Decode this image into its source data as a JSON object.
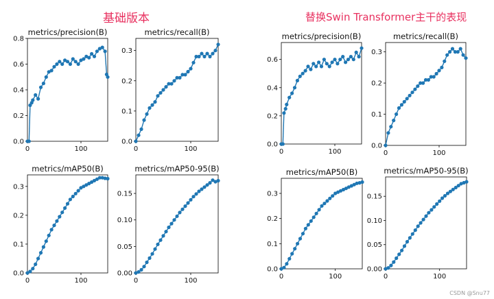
{
  "titles": {
    "left": "基础版本",
    "right": "替换Swin Transformer主干的表现"
  },
  "watermark": "CSDN @Snu77",
  "series_color": "#1f77b4",
  "smooth_color": "#ff7f0e",
  "chart_data": [
    {
      "type": "line",
      "group": "left",
      "title": "metrics/precision(B)",
      "xlim": [
        0,
        150
      ],
      "ylim": [
        0,
        0.8
      ],
      "xticks": [
        0,
        100
      ],
      "yticks": [
        0.0,
        0.2,
        0.4,
        0.6,
        0.8
      ],
      "x": [
        0,
        3,
        5,
        8,
        10,
        15,
        20,
        25,
        30,
        35,
        40,
        45,
        50,
        55,
        60,
        65,
        70,
        75,
        80,
        85,
        90,
        95,
        100,
        105,
        110,
        115,
        120,
        125,
        130,
        135,
        140,
        145,
        148,
        150
      ],
      "y": [
        0.0,
        0.0,
        0.28,
        0.3,
        0.32,
        0.36,
        0.33,
        0.42,
        0.45,
        0.5,
        0.54,
        0.55,
        0.58,
        0.6,
        0.62,
        0.6,
        0.63,
        0.62,
        0.6,
        0.64,
        0.62,
        0.6,
        0.63,
        0.64,
        0.66,
        0.65,
        0.68,
        0.66,
        0.7,
        0.72,
        0.73,
        0.7,
        0.52,
        0.5
      ]
    },
    {
      "type": "line",
      "group": "left",
      "title": "metrics/recall(B)",
      "xlim": [
        0,
        150
      ],
      "ylim": [
        0,
        0.34
      ],
      "xticks": [
        0,
        100
      ],
      "yticks": [
        0.0,
        0.1,
        0.2,
        0.3
      ],
      "x": [
        0,
        5,
        10,
        15,
        20,
        25,
        30,
        35,
        40,
        45,
        50,
        55,
        60,
        65,
        70,
        75,
        80,
        85,
        90,
        95,
        100,
        105,
        110,
        115,
        120,
        125,
        130,
        135,
        140,
        145,
        150
      ],
      "y": [
        0.0,
        0.02,
        0.04,
        0.07,
        0.09,
        0.11,
        0.12,
        0.13,
        0.15,
        0.16,
        0.17,
        0.18,
        0.19,
        0.19,
        0.2,
        0.21,
        0.21,
        0.22,
        0.22,
        0.23,
        0.24,
        0.26,
        0.28,
        0.28,
        0.29,
        0.28,
        0.29,
        0.28,
        0.29,
        0.3,
        0.32
      ]
    },
    {
      "type": "line",
      "group": "left",
      "title": "metrics/mAP50(B)",
      "xlim": [
        0,
        150
      ],
      "ylim": [
        0,
        0.34
      ],
      "xticks": [
        0,
        100
      ],
      "yticks": [
        0.0,
        0.1,
        0.2,
        0.3
      ],
      "x": [
        0,
        5,
        10,
        15,
        20,
        25,
        30,
        35,
        40,
        45,
        50,
        55,
        60,
        65,
        70,
        75,
        80,
        85,
        90,
        95,
        100,
        105,
        110,
        115,
        120,
        125,
        130,
        135,
        140,
        145,
        150
      ],
      "y": [
        0.0,
        0.005,
        0.015,
        0.03,
        0.05,
        0.07,
        0.09,
        0.11,
        0.13,
        0.15,
        0.165,
        0.18,
        0.195,
        0.21,
        0.225,
        0.24,
        0.255,
        0.265,
        0.275,
        0.285,
        0.295,
        0.3,
        0.305,
        0.31,
        0.315,
        0.32,
        0.325,
        0.33,
        0.33,
        0.328,
        0.327
      ]
    },
    {
      "type": "line",
      "group": "left",
      "title": "metrics/mAP50-95(B)",
      "xlim": [
        0,
        150
      ],
      "ylim": [
        0,
        0.185
      ],
      "xticks": [
        0,
        100
      ],
      "yticks": [
        0.0,
        0.05,
        0.1,
        0.15
      ],
      "x": [
        0,
        5,
        10,
        15,
        20,
        25,
        30,
        35,
        40,
        45,
        50,
        55,
        60,
        65,
        70,
        75,
        80,
        85,
        90,
        95,
        100,
        105,
        110,
        115,
        120,
        125,
        130,
        135,
        140,
        145,
        150
      ],
      "y": [
        0.0,
        0.002,
        0.006,
        0.012,
        0.02,
        0.028,
        0.036,
        0.045,
        0.054,
        0.062,
        0.07,
        0.078,
        0.086,
        0.093,
        0.1,
        0.107,
        0.114,
        0.12,
        0.126,
        0.132,
        0.138,
        0.144,
        0.149,
        0.154,
        0.158,
        0.162,
        0.166,
        0.17,
        0.175,
        0.172,
        0.174
      ]
    },
    {
      "type": "line",
      "group": "right",
      "title": "metrics/precision(B)",
      "xlim": [
        0,
        150
      ],
      "ylim": [
        0,
        0.72
      ],
      "xticks": [
        0,
        100
      ],
      "yticks": [
        0.0,
        0.2,
        0.4,
        0.6
      ],
      "x": [
        0,
        3,
        5,
        8,
        10,
        15,
        20,
        25,
        30,
        35,
        40,
        45,
        50,
        55,
        60,
        65,
        70,
        75,
        80,
        85,
        90,
        95,
        100,
        105,
        110,
        115,
        120,
        125,
        130,
        135,
        140,
        145,
        150
      ],
      "y": [
        0.0,
        0.0,
        0.22,
        0.25,
        0.28,
        0.33,
        0.36,
        0.4,
        0.45,
        0.48,
        0.5,
        0.52,
        0.55,
        0.53,
        0.57,
        0.55,
        0.58,
        0.55,
        0.6,
        0.57,
        0.55,
        0.58,
        0.6,
        0.57,
        0.6,
        0.62,
        0.58,
        0.6,
        0.62,
        0.6,
        0.65,
        0.62,
        0.68
      ]
    },
    {
      "type": "line",
      "group": "right",
      "title": "metrics/recall(B)",
      "xlim": [
        0,
        150
      ],
      "ylim": [
        0,
        0.33
      ],
      "xticks": [
        0,
        100
      ],
      "yticks": [
        0.0,
        0.1,
        0.2,
        0.3
      ],
      "x": [
        0,
        5,
        10,
        15,
        20,
        25,
        30,
        35,
        40,
        45,
        50,
        55,
        60,
        65,
        70,
        75,
        80,
        85,
        90,
        95,
        100,
        105,
        110,
        115,
        120,
        125,
        130,
        135,
        140,
        145,
        150
      ],
      "y": [
        0.0,
        0.04,
        0.06,
        0.08,
        0.1,
        0.12,
        0.13,
        0.14,
        0.15,
        0.16,
        0.17,
        0.18,
        0.19,
        0.2,
        0.2,
        0.21,
        0.21,
        0.22,
        0.22,
        0.23,
        0.24,
        0.25,
        0.27,
        0.29,
        0.3,
        0.31,
        0.3,
        0.3,
        0.31,
        0.29,
        0.28
      ]
    },
    {
      "type": "line",
      "group": "right",
      "title": "metrics/mAP50(B)",
      "xlim": [
        0,
        150
      ],
      "ylim": [
        0,
        0.36
      ],
      "xticks": [
        0,
        100
      ],
      "yticks": [
        0.0,
        0.1,
        0.2,
        0.3
      ],
      "x": [
        0,
        5,
        10,
        15,
        20,
        25,
        30,
        35,
        40,
        45,
        50,
        55,
        60,
        65,
        70,
        75,
        80,
        85,
        90,
        95,
        100,
        105,
        110,
        115,
        120,
        125,
        130,
        135,
        140,
        145,
        150
      ],
      "y": [
        0.0,
        0.005,
        0.02,
        0.04,
        0.06,
        0.08,
        0.1,
        0.12,
        0.14,
        0.16,
        0.175,
        0.19,
        0.205,
        0.22,
        0.235,
        0.25,
        0.26,
        0.27,
        0.28,
        0.29,
        0.3,
        0.305,
        0.31,
        0.315,
        0.32,
        0.325,
        0.33,
        0.335,
        0.34,
        0.342,
        0.345
      ]
    },
    {
      "type": "line",
      "group": "right",
      "title": "metrics/mAP50-95(B)",
      "xlim": [
        0,
        150
      ],
      "ylim": [
        0,
        0.19
      ],
      "xticks": [
        0,
        100
      ],
      "yticks": [
        0.0,
        0.05,
        0.1,
        0.15
      ],
      "x": [
        0,
        5,
        10,
        15,
        20,
        25,
        30,
        35,
        40,
        45,
        50,
        55,
        60,
        65,
        70,
        75,
        80,
        85,
        90,
        95,
        100,
        105,
        110,
        115,
        120,
        125,
        130,
        135,
        140,
        145,
        150
      ],
      "y": [
        0.0,
        0.002,
        0.007,
        0.014,
        0.022,
        0.03,
        0.038,
        0.047,
        0.056,
        0.064,
        0.072,
        0.08,
        0.088,
        0.095,
        0.102,
        0.109,
        0.116,
        0.122,
        0.128,
        0.134,
        0.14,
        0.146,
        0.151,
        0.156,
        0.16,
        0.164,
        0.168,
        0.172,
        0.176,
        0.178,
        0.18
      ]
    }
  ]
}
